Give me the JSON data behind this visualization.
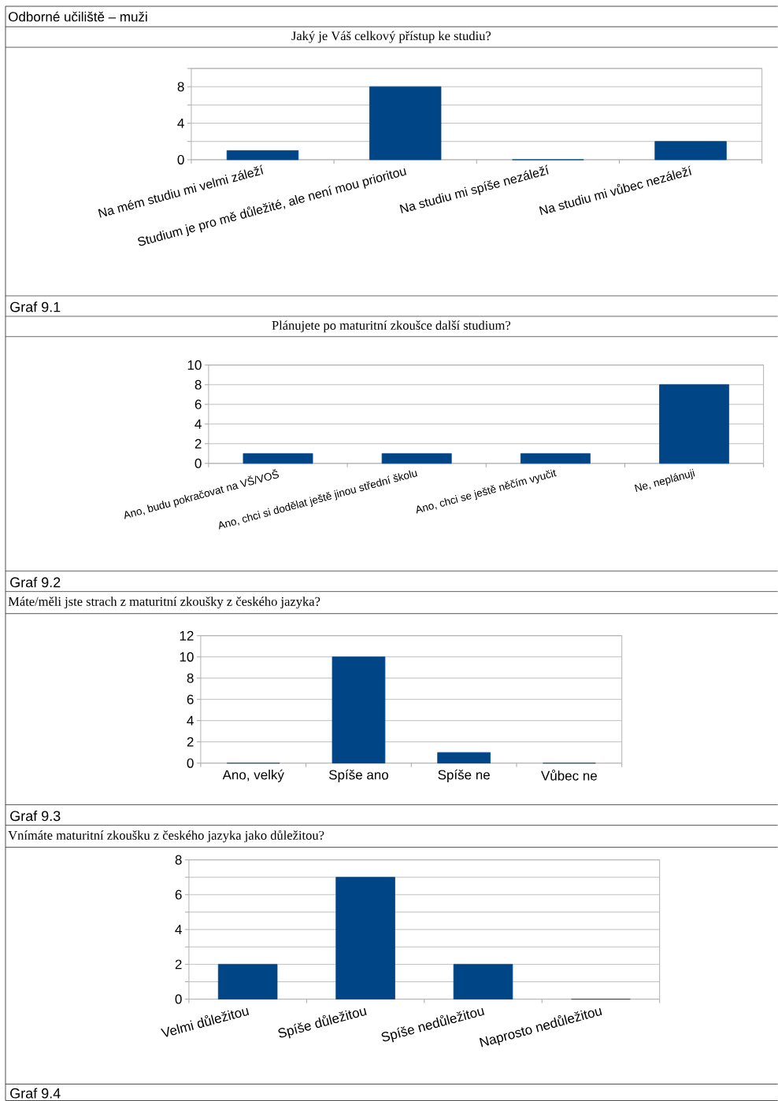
{
  "chart_data": [
    {
      "type": "bar",
      "title": "Jaký je Váš celkový přístup ke studiu?",
      "categories": [
        "Na mém studiu mi velmi záleží",
        "Studium je pro mě důležité, ale není mou prioritou",
        "Na studiu mi spíše nezáleží",
        "Na studiu mi vůbec nezáleží"
      ],
      "values": [
        1,
        8,
        0,
        2
      ],
      "color": "#004586",
      "ylim": [
        0,
        10
      ],
      "yticks": [
        0,
        {
          "value": 2,
          "label": null
        },
        4,
        {
          "value": 6,
          "label": null
        },
        8,
        {
          "value": 10,
          "label": null
        }
      ],
      "grid": "y",
      "annotations": [
        "Odborné učiliště – muži",
        "Graf 9.1"
      ]
    },
    {
      "type": "bar",
      "title": "Plánujete po maturitní zkoušce další studium?",
      "categories": [
        "Ano, budu pokračovat na VŠ/VOŠ",
        "Ano, chci si dodělat ještě jinou střední školu",
        "Ano, chci se ještě něčím vyučit",
        "Ne, neplánuji"
      ],
      "values": [
        1,
        1,
        1,
        8
      ],
      "color": "#004586",
      "ylim": [
        0,
        10
      ],
      "yticks": [
        0,
        2,
        4,
        6,
        8,
        10
      ],
      "grid": "y",
      "annotations": [
        "Graf 9.2"
      ]
    },
    {
      "type": "bar",
      "title": "Máte/měli jste strach z maturitní zkoušky z českého jazyka?",
      "categories": [
        "Ano, velký",
        "Spíše ano",
        "Spíše ne",
        "Vůbec ne"
      ],
      "values": [
        0,
        10,
        1,
        0
      ],
      "color": "#004586",
      "ylim": [
        0,
        12
      ],
      "yticks": [
        0,
        2,
        4,
        6,
        8,
        10,
        12
      ],
      "grid": "y",
      "annotations": [
        "Graf 9.3"
      ]
    },
    {
      "type": "bar",
      "title": "Vnímáte maturitní zkoušku z českého jazyka jako důležitou?",
      "categories": [
        "Velmi důležitou",
        "Spíše důležitou",
        "Spíše nedůležitou",
        "Naprosto nedůležitou"
      ],
      "values": [
        2,
        7,
        2,
        0
      ],
      "color": "#004586",
      "ylim": [
        0,
        8
      ],
      "yticks": [
        0,
        {
          "value": 1,
          "label": null
        },
        2,
        {
          "value": 3,
          "label": null
        },
        4,
        {
          "value": 5,
          "label": null
        },
        6,
        {
          "value": 7,
          "label": null
        },
        8
      ],
      "grid": "y",
      "annotations": [
        "Graf 9.4"
      ]
    }
  ]
}
